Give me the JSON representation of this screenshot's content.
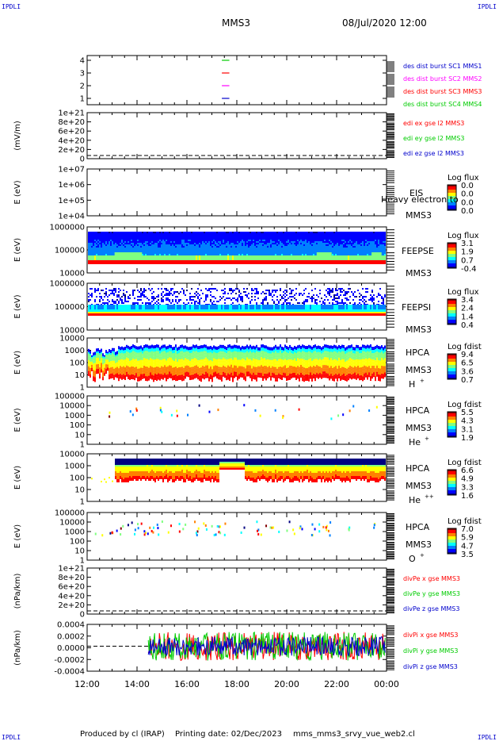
{
  "corner_labels": [
    "IPDLI",
    "IPDLI",
    "IPDLI",
    "IPDLI"
  ],
  "header": {
    "spacecraft": "MMS3",
    "datetime": "08/Jul/2020 12:00"
  },
  "footer": {
    "produced_by": "Produced by cl (IRAP)",
    "printing_date": "Printing date: 02/Dec/2023",
    "filename": "mms_mms3_srvy_vue_web2.cl"
  },
  "colors": {
    "red": "#ff0000",
    "green": "#00cc00",
    "blue": "#0000cc",
    "magenta": "#ff00ff",
    "frame": "#000000"
  },
  "x_axis": {
    "ticks": [
      "12:00",
      "14:00",
      "16:00",
      "18:00",
      "20:00",
      "22:00",
      "00:00"
    ],
    "hour_start": 12,
    "hour_end": 24
  },
  "chart_data": [
    {
      "id": "dist",
      "type": "line",
      "yticks": [
        "4",
        "3",
        "2",
        "1"
      ],
      "ylabel": "",
      "legend": [
        {
          "label": "des dist burst SC1 MMS1",
          "color": "#0000cc"
        },
        {
          "label": "des dist burst SC2 MMS2",
          "color": "#ff00ff"
        },
        {
          "label": "des dist burst SC3 MMS3",
          "color": "#ff0000"
        },
        {
          "label": "des dist burst SC4 MMS4",
          "color": "#00cc00"
        }
      ],
      "segments": [
        {
          "sc": 4,
          "start": 17.4,
          "end": 17.7,
          "color": "#00cc00"
        },
        {
          "sc": 3,
          "start": 17.4,
          "end": 17.7,
          "color": "#ff0000"
        },
        {
          "sc": 2,
          "start": 17.4,
          "end": 17.7,
          "color": "#ff00ff"
        },
        {
          "sc": 1,
          "start": 17.4,
          "end": 17.7,
          "color": "#0000cc"
        }
      ]
    },
    {
      "id": "edi",
      "type": "line",
      "ylabel": "(mV/m)",
      "yticks": [
        "1e+21",
        "8e+20",
        "6e+20",
        "4e+20",
        "2e+20",
        "0"
      ],
      "legend": [
        {
          "label": "edi ex gse l2 MMS3",
          "color": "#ff0000"
        },
        {
          "label": "edi ey gse l2 MMS3",
          "color": "#00cc00"
        },
        {
          "label": "edi ez gse l2 MMS3",
          "color": "#0000cc"
        }
      ]
    },
    {
      "id": "eis",
      "type": "heatmap",
      "ylabel": "E (eV)",
      "yticks": [
        "1e+07",
        "1e+06",
        "1e+05",
        "1e+04"
      ],
      "instrument": "EIS",
      "spacecraft": "MMS3",
      "overlay_text": "Heavy electron to",
      "cbar_title": "Log flux",
      "cbar_ticks": [
        "0.0",
        "0.0",
        "0.0",
        "0.0"
      ]
    },
    {
      "id": "feepse",
      "type": "heatmap",
      "ylabel": "E (eV)",
      "yticks": [
        "1000000",
        "100000",
        "10000"
      ],
      "instrument": "FEEPSE",
      "spacecraft": "MMS3",
      "cbar_title": "Log flux",
      "cbar_ticks": [
        "3.1",
        "1.9",
        "0.7",
        "-0.4"
      ]
    },
    {
      "id": "feepsi",
      "type": "heatmap",
      "ylabel": "E (eV)",
      "yticks": [
        "1000000",
        "100000",
        "10000"
      ],
      "instrument": "FEEPSI",
      "spacecraft": "MMS3",
      "cbar_title": "Log flux",
      "cbar_ticks": [
        "3.4",
        "2.4",
        "1.4",
        "0.4"
      ]
    },
    {
      "id": "hpca_h",
      "type": "heatmap",
      "ylabel": "E (eV)",
      "yticks": [
        "10000",
        "1000",
        "100",
        "10",
        "1"
      ],
      "instrument": "HPCA",
      "spacecraft": "MMS3",
      "species": "H",
      "species_charge": "+",
      "cbar_title": "Log fdist",
      "cbar_ticks": [
        "9.4",
        "6.5",
        "3.6",
        "0.7"
      ]
    },
    {
      "id": "hpca_he",
      "type": "heatmap",
      "ylabel": "E (eV)",
      "yticks": [
        "100000",
        "10000",
        "1000",
        "100",
        "10",
        "1"
      ],
      "instrument": "HPCA",
      "spacecraft": "MMS3",
      "species": "He",
      "species_charge": "+",
      "cbar_title": "Log fdist",
      "cbar_ticks": [
        "5.5",
        "4.3",
        "3.1",
        "1.9"
      ]
    },
    {
      "id": "hpca_hepp",
      "type": "heatmap",
      "ylabel": "E (eV)",
      "yticks": [
        "10000",
        "1000",
        "100",
        "10",
        "1"
      ],
      "instrument": "HPCA",
      "spacecraft": "MMS3",
      "species": "He",
      "species_charge": "++",
      "cbar_title": "Log fdist",
      "cbar_ticks": [
        "6.6",
        "4.9",
        "3.3",
        "1.6"
      ]
    },
    {
      "id": "hpca_o",
      "type": "heatmap",
      "ylabel": "E (eV)",
      "yticks": [
        "100000",
        "10000",
        "1000",
        "100",
        "10",
        "1"
      ],
      "instrument": "HPCA",
      "spacecraft": "MMS3",
      "species": "O",
      "species_charge": "+",
      "cbar_title": "Log fdist",
      "cbar_ticks": [
        "7.0",
        "5.9",
        "4.7",
        "3.5"
      ]
    },
    {
      "id": "divpe",
      "type": "line",
      "ylabel": "(nPa/km)",
      "yticks": [
        "1e+21",
        "8e+20",
        "6e+20",
        "4e+20",
        "2e+20",
        "0"
      ],
      "legend": [
        {
          "label": "divPe x gse MMS3",
          "color": "#ff0000"
        },
        {
          "label": "divPe y gse MMS3",
          "color": "#00cc00"
        },
        {
          "label": "divPe z gse MMS3",
          "color": "#0000cc"
        }
      ]
    },
    {
      "id": "divpi",
      "type": "line",
      "ylabel": "(nPa/km)",
      "yticks": [
        "0.0004",
        "0.0002",
        "0.0000",
        "-0.0002",
        "-0.0004"
      ],
      "ylim": [
        -0.0005,
        0.0005
      ],
      "data_start_hour": 14.45,
      "legend": [
        {
          "label": "divPi x gse MMS3",
          "color": "#ff0000"
        },
        {
          "label": "divPi y gse MMS3",
          "color": "#00cc00"
        },
        {
          "label": "divPi z gse MMS3",
          "color": "#0000cc"
        }
      ]
    }
  ]
}
